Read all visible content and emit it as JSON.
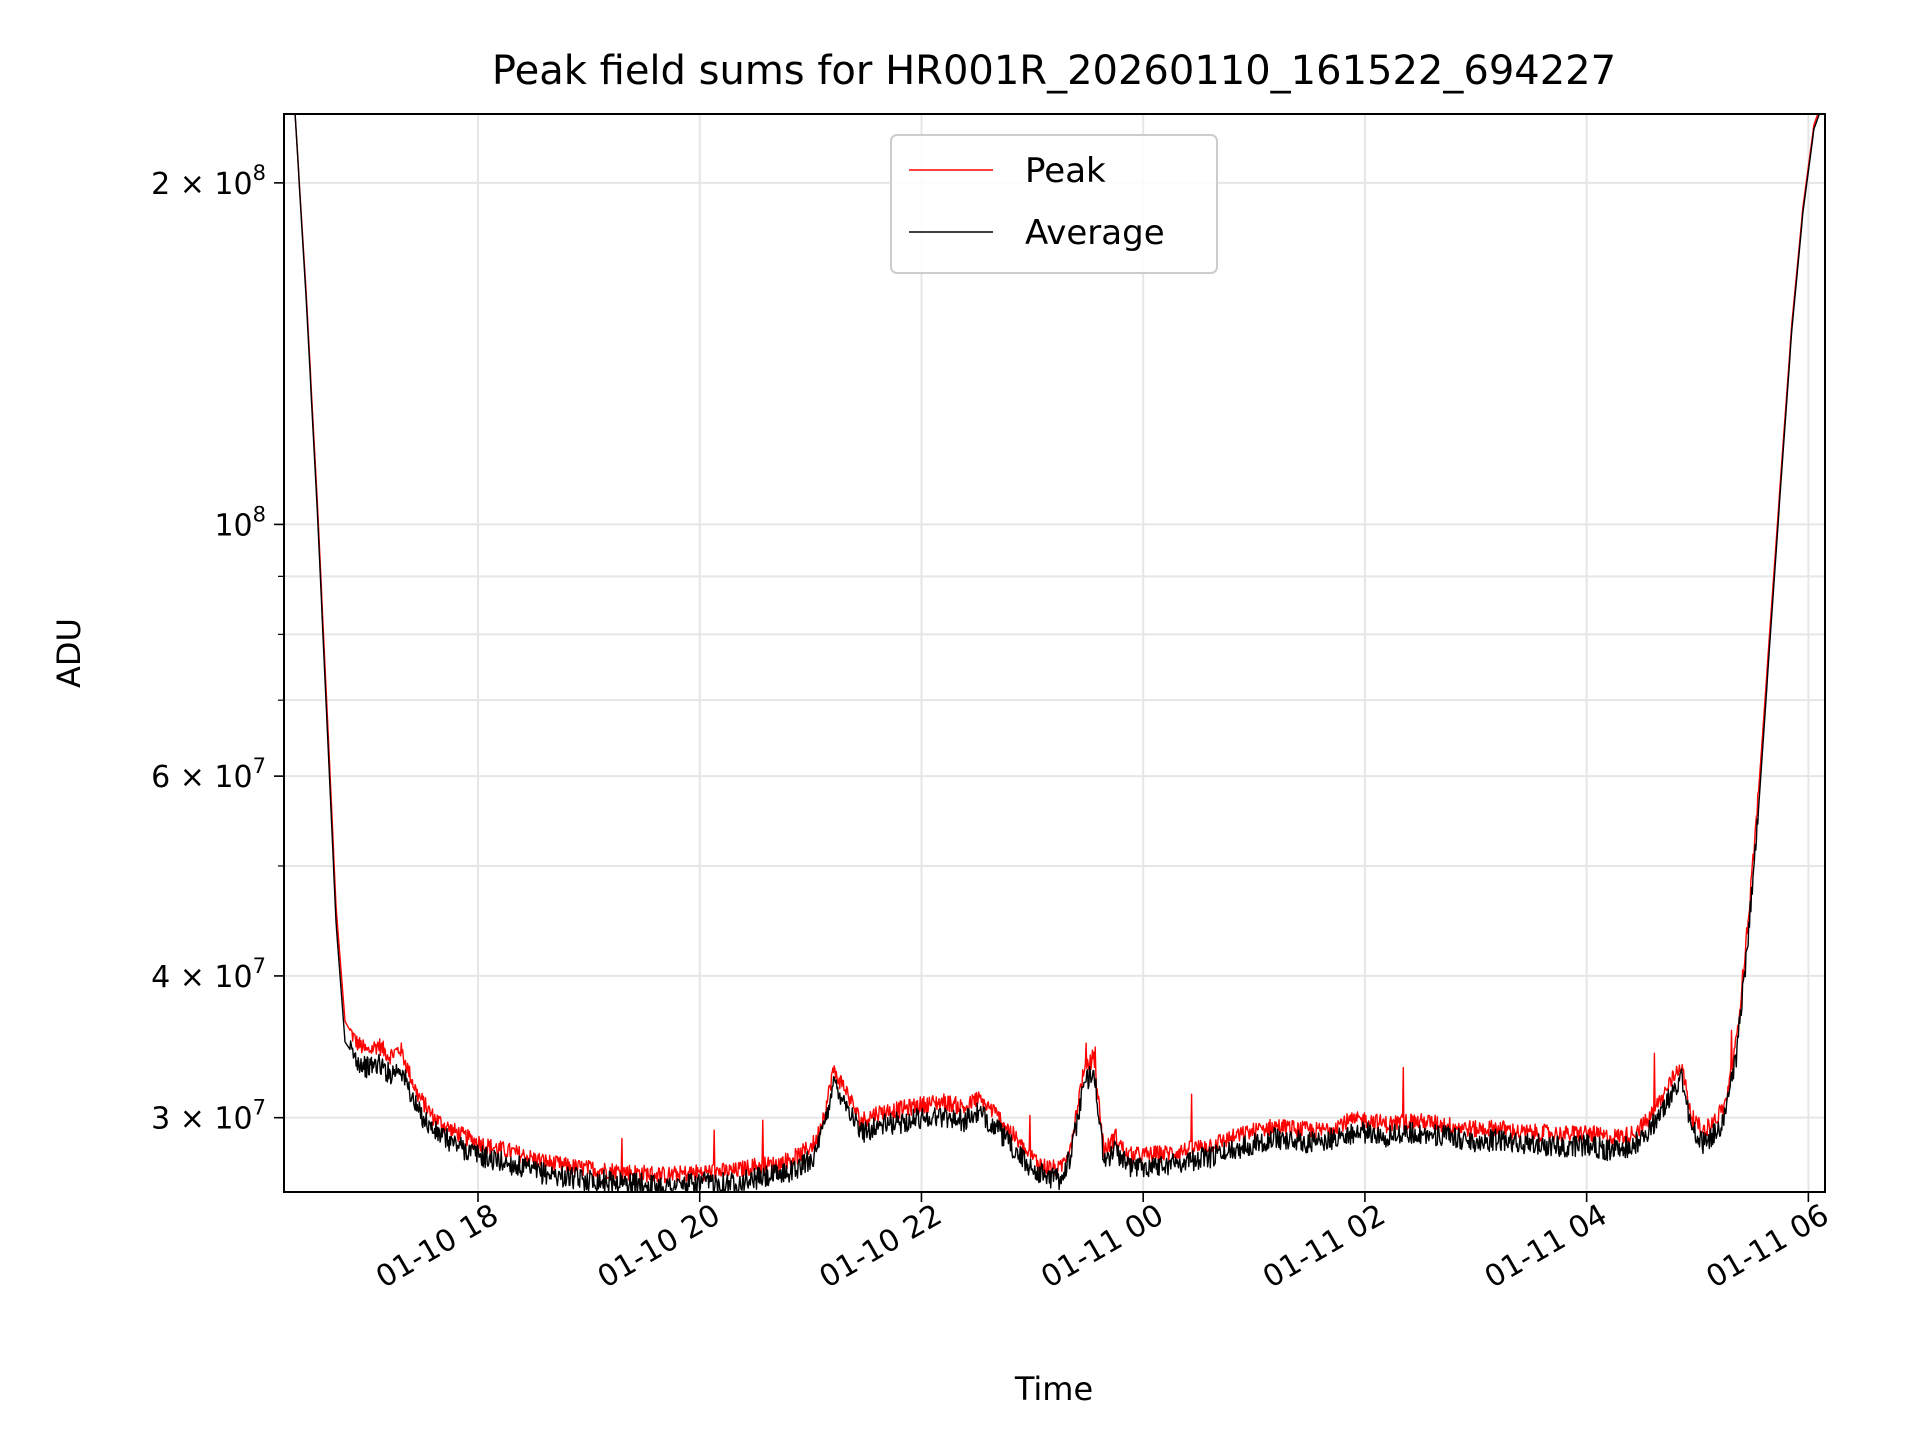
{
  "chart_data": {
    "type": "line",
    "title": "Peak field sums for HR001R_20260110_161522_694227",
    "xlabel": "Time",
    "ylabel": "ADU",
    "yscale": "log",
    "grid": true,
    "legend_position": "upper-center",
    "xlim": [
      16.25,
      30.15
    ],
    "ylim": [
      25800000,
      230000000
    ],
    "x_unit": "hours since 2026-01-10 00:00",
    "x_ticks": [
      {
        "value": 18,
        "label": "01-10 18"
      },
      {
        "value": 20,
        "label": "01-10 20"
      },
      {
        "value": 22,
        "label": "01-10 22"
      },
      {
        "value": 24,
        "label": "01-11 00"
      },
      {
        "value": 26,
        "label": "01-11 02"
      },
      {
        "value": 28,
        "label": "01-11 04"
      },
      {
        "value": 30,
        "label": "01-11 06"
      }
    ],
    "y_major_ticks": [
      {
        "value": 30000000,
        "mantissa": "3 × 10",
        "exp": "7"
      },
      {
        "value": 40000000,
        "mantissa": "4 × 10",
        "exp": "7"
      },
      {
        "value": 60000000,
        "mantissa": "6 × 10",
        "exp": "7"
      },
      {
        "value": 100000000,
        "mantissa": "10",
        "exp": "8"
      },
      {
        "value": 200000000,
        "mantissa": "2 × 10",
        "exp": "8"
      }
    ],
    "y_minor_ticks": [
      50000000,
      70000000,
      80000000,
      90000000
    ],
    "series": [
      {
        "name": "Peak",
        "color": "#ff0000",
        "x": [
          16.35,
          16.45,
          16.55,
          16.65,
          16.72,
          16.8,
          16.9,
          17.0,
          17.1,
          17.2,
          17.3,
          17.45,
          17.6,
          17.75,
          17.9,
          18.1,
          18.3,
          18.5,
          18.7,
          18.9,
          19.1,
          19.3,
          19.5,
          19.7,
          19.9,
          20.1,
          20.3,
          20.5,
          20.7,
          20.9,
          21.05,
          21.15,
          21.2,
          21.3,
          21.45,
          21.6,
          21.8,
          22.0,
          22.2,
          22.4,
          22.5,
          22.65,
          22.8,
          22.95,
          23.1,
          23.25,
          23.35,
          23.45,
          23.55,
          23.65,
          23.75,
          23.85,
          24.0,
          24.2,
          24.4,
          24.6,
          24.8,
          25.0,
          25.2,
          25.4,
          25.6,
          25.8,
          26.0,
          26.2,
          26.4,
          26.6,
          26.8,
          27.0,
          27.2,
          27.4,
          27.6,
          27.8,
          28.0,
          28.2,
          28.4,
          28.55,
          28.7,
          28.85,
          28.95,
          29.05,
          29.15,
          29.25,
          29.35,
          29.45,
          29.55,
          29.65,
          29.75,
          29.85,
          29.95,
          30.05,
          30.12
        ],
        "y": [
          230000000,
          160000000,
          105000000,
          65000000,
          46000000,
          36500000,
          35000000,
          34300000,
          34800000,
          34000000,
          34500000,
          31500000,
          30000000,
          29300000,
          28800000,
          28300000,
          28000000,
          27600000,
          27300000,
          27100000,
          27000000,
          26900000,
          26800000,
          26700000,
          26800000,
          26900000,
          26900000,
          27200000,
          27300000,
          27800000,
          28600000,
          31000000,
          33000000,
          32000000,
          29800000,
          30300000,
          30500000,
          30800000,
          31000000,
          30600000,
          31200000,
          30400000,
          29200000,
          27900000,
          27200000,
          27000000,
          28500000,
          32500000,
          34000000,
          28000000,
          28900000,
          27800000,
          27800000,
          27900000,
          28100000,
          28400000,
          28800000,
          29200000,
          29500000,
          29300000,
          29200000,
          29700000,
          29900000,
          29600000,
          29800000,
          29700000,
          29500000,
          29300000,
          29400000,
          29100000,
          29100000,
          29000000,
          29100000,
          28800000,
          29000000,
          29800000,
          31500000,
          33500000,
          30000000,
          29200000,
          29800000,
          30800000,
          35000000,
          44000000,
          58000000,
          80000000,
          110000000,
          150000000,
          190000000,
          225000000,
          235000000
        ]
      },
      {
        "name": "Average",
        "color": "#000000",
        "x": [
          16.35,
          16.45,
          16.55,
          16.65,
          16.72,
          16.8,
          16.9,
          17.0,
          17.1,
          17.2,
          17.3,
          17.45,
          17.6,
          17.75,
          17.9,
          18.1,
          18.3,
          18.5,
          18.7,
          18.9,
          19.1,
          19.3,
          19.5,
          19.7,
          19.9,
          20.1,
          20.3,
          20.5,
          20.7,
          20.9,
          21.05,
          21.15,
          21.2,
          21.3,
          21.45,
          21.6,
          21.8,
          22.0,
          22.2,
          22.4,
          22.5,
          22.65,
          22.8,
          22.95,
          23.1,
          23.25,
          23.35,
          23.45,
          23.55,
          23.65,
          23.75,
          23.85,
          24.0,
          24.2,
          24.4,
          24.6,
          24.8,
          25.0,
          25.2,
          25.4,
          25.6,
          25.8,
          26.0,
          26.2,
          26.4,
          26.6,
          26.8,
          27.0,
          27.2,
          27.4,
          27.6,
          27.8,
          28.0,
          28.2,
          28.4,
          28.55,
          28.7,
          28.85,
          28.95,
          29.05,
          29.15,
          29.25,
          29.35,
          29.45,
          29.55,
          29.65,
          29.75,
          29.85,
          29.95,
          30.05,
          30.12
        ],
        "y": [
          230000000,
          158000000,
          103000000,
          63000000,
          44500000,
          35000000,
          33800000,
          33200000,
          33500000,
          32800000,
          33200000,
          30500000,
          29200000,
          28600000,
          28100000,
          27600000,
          27300000,
          26900000,
          26700000,
          26500000,
          26400000,
          26300000,
          26200000,
          26100000,
          26200000,
          26300000,
          26300000,
          26500000,
          26700000,
          27100000,
          27900000,
          30200000,
          32300000,
          31200000,
          29100000,
          29500000,
          29700000,
          30000000,
          30100000,
          29800000,
          30300000,
          29600000,
          28400000,
          27300000,
          26700000,
          26500000,
          27800000,
          31600000,
          33300000,
          27300000,
          28200000,
          27200000,
          27200000,
          27300000,
          27500000,
          27700000,
          28100000,
          28500000,
          28800000,
          28600000,
          28500000,
          29000000,
          29100000,
          28900000,
          29100000,
          29000000,
          28800000,
          28600000,
          28700000,
          28400000,
          28400000,
          28300000,
          28400000,
          28100000,
          28300000,
          29100000,
          30700000,
          32600000,
          29300000,
          28500000,
          29000000,
          30000000,
          34000000,
          42500000,
          56000000,
          78000000,
          108000000,
          148000000,
          188000000,
          223000000,
          233000000
        ]
      }
    ]
  }
}
